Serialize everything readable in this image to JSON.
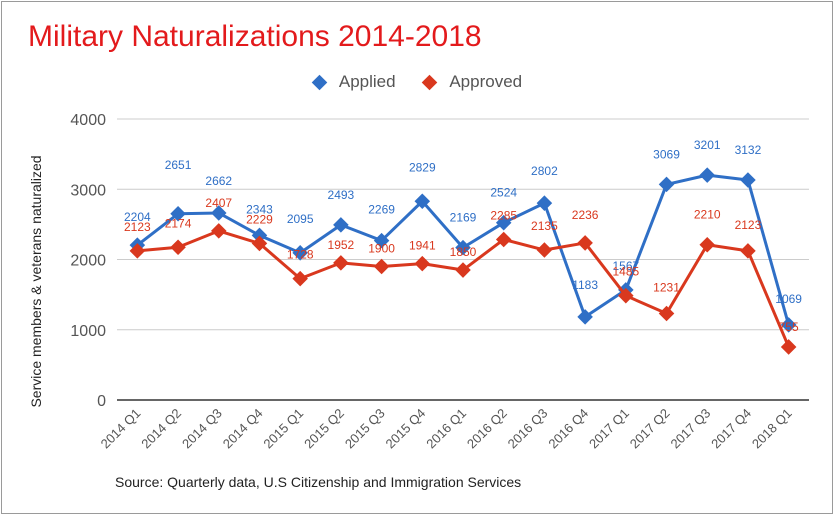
{
  "title": "Military Naturalizations 2014-2018",
  "source": "Source: Quarterly data, U.S Citizenship and Immigration Services",
  "chart_data": {
    "type": "line",
    "title": "Military Naturalizations 2014-2018",
    "xlabel": "",
    "ylabel": "Service members & veterans naturalized",
    "ylim": [
      0,
      4000
    ],
    "yticks": [
      0,
      1000,
      2000,
      3000,
      4000
    ],
    "grid": true,
    "legend_position": "top",
    "categories": [
      "2014 Q1",
      "2014 Q2",
      "2014 Q3",
      "2014 Q4",
      "2015 Q1",
      "2015 Q2",
      "2015 Q3",
      "2015 Q4",
      "2016 Q1",
      "2016 Q2",
      "2016 Q3",
      "2016 Q4",
      "2017 Q1",
      "2017 Q2",
      "2017 Q3",
      "2017 Q4",
      "2018 Q1"
    ],
    "series": [
      {
        "name": "Applied",
        "color": "#2f6fc6",
        "values": [
          2204,
          2651,
          2662,
          2343,
          2095,
          2493,
          2269,
          2829,
          2169,
          2524,
          2802,
          1183,
          1567,
          3069,
          3201,
          3132,
          1069
        ],
        "labels": [
          "2204",
          "2651",
          "2662",
          "2343",
          "2095",
          "2493",
          "2269",
          "2829",
          "2169",
          "2524",
          "2802",
          "1183",
          "1567",
          "3069",
          "3201",
          "3132",
          "1069"
        ]
      },
      {
        "name": "Approved",
        "color": "#d9381e",
        "values": [
          2123,
          2174,
          2407,
          2229,
          1728,
          1952,
          1900,
          1941,
          1850,
          2285,
          2135,
          2236,
          1485,
          1231,
          2210,
          2123,
          755
        ],
        "labels": [
          "2123",
          "2174",
          "2407",
          "2229",
          "1728",
          "1952",
          "1900",
          "1941",
          "1850",
          "2285",
          "2135",
          "2236",
          "1485",
          "1231",
          "2210",
          "2123",
          "755"
        ]
      }
    ]
  }
}
